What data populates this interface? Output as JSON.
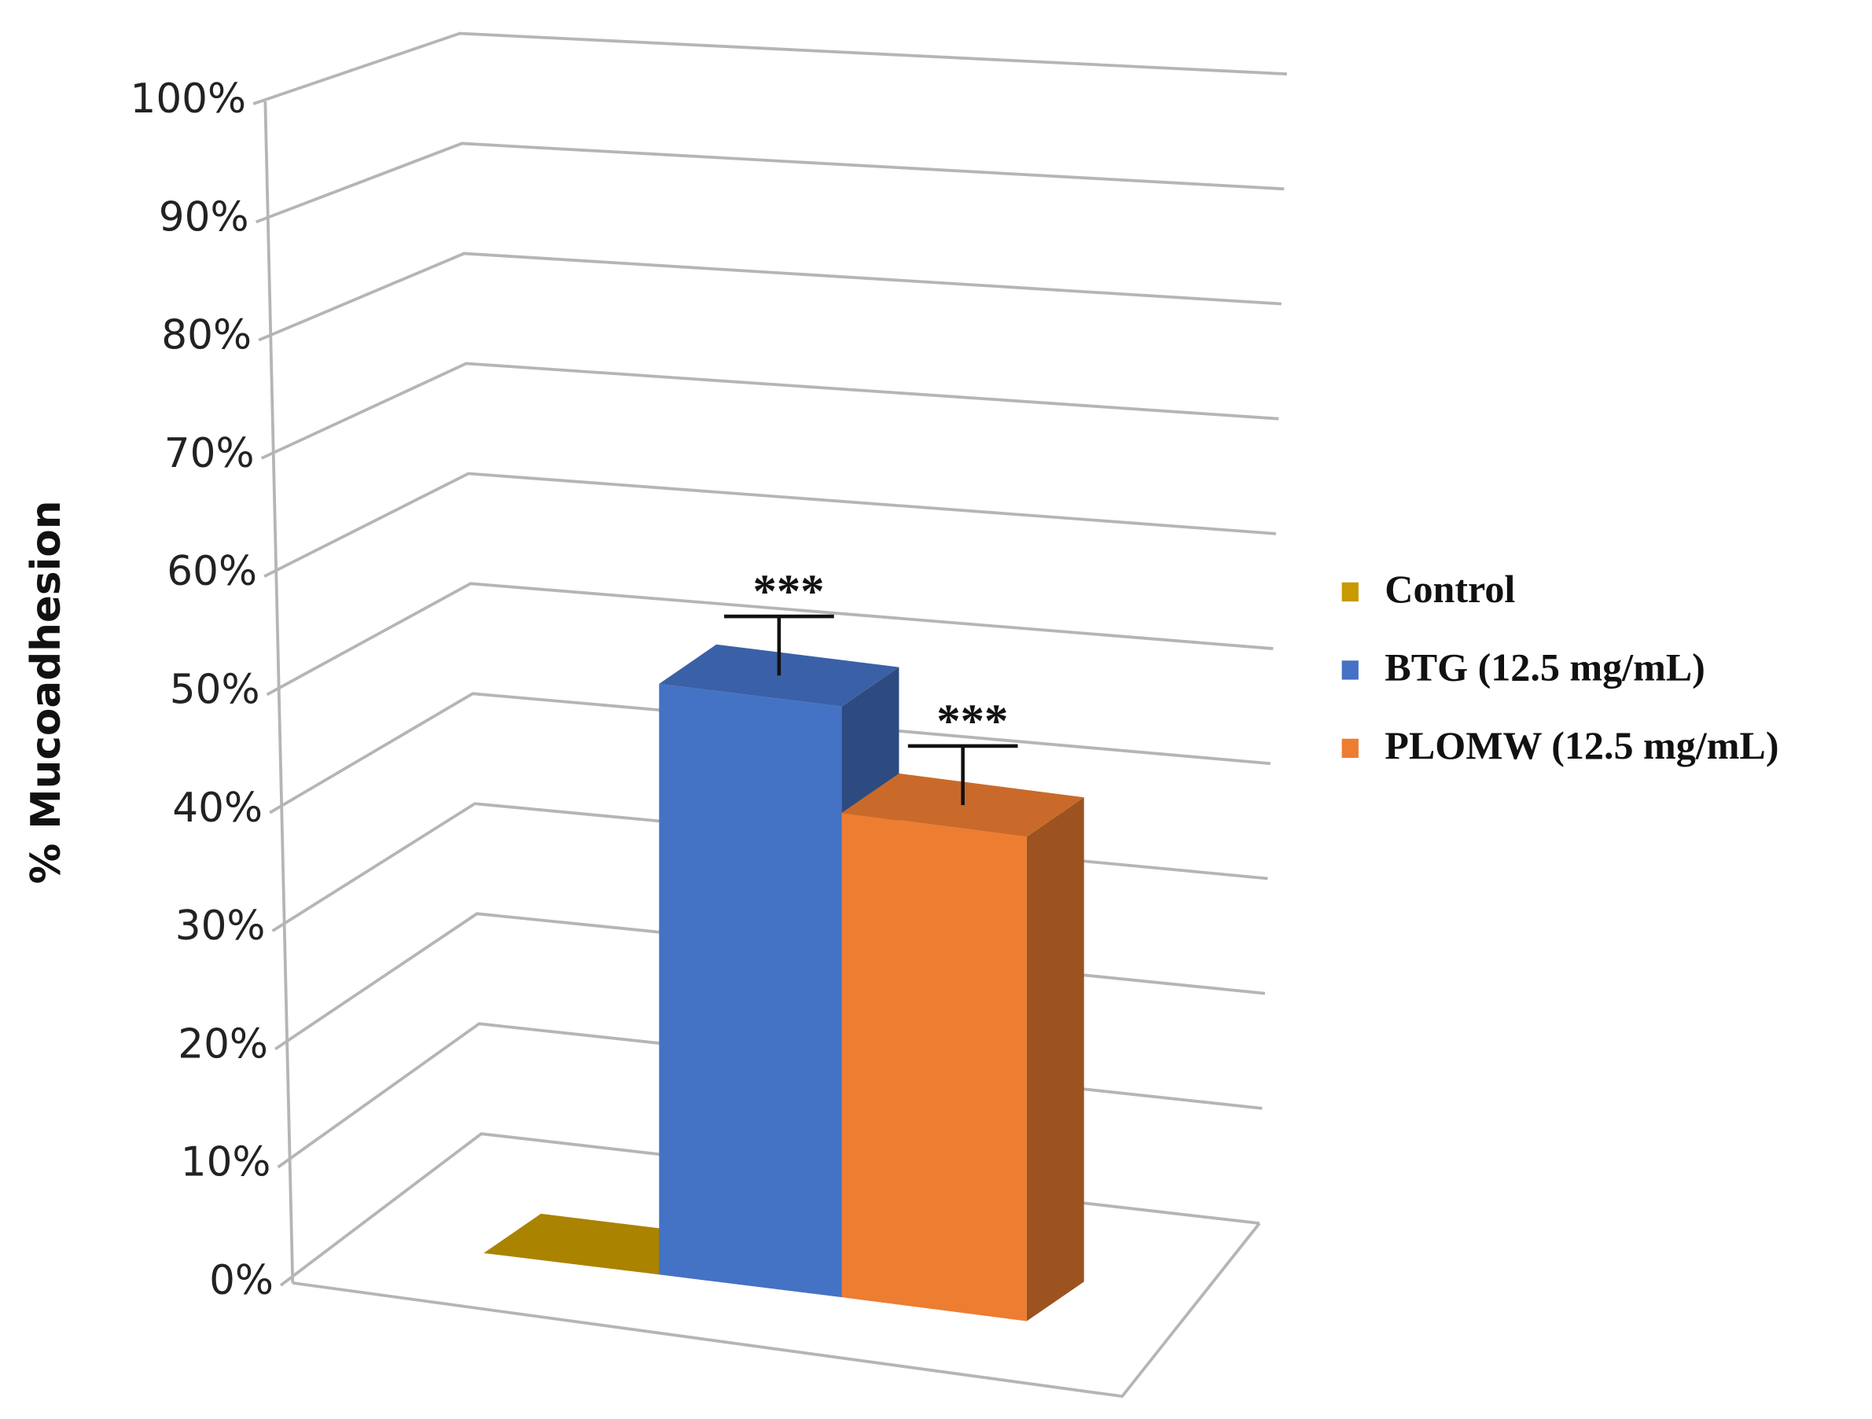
{
  "chart_data": {
    "type": "bar3d",
    "y_label": "% Mucoadhesion",
    "categories": [
      null
    ],
    "series": [
      {
        "name": "Control",
        "color": "#c89a00",
        "values": [
          0
        ]
      },
      {
        "name": "BTG (12.5 mg/mL)",
        "color": "#4472c4",
        "values": [
          50
        ],
        "errors": [
          5
        ],
        "annotations": [
          "***"
        ]
      },
      {
        "name": "PLOMW (12.5 mg/mL)",
        "color": "#ed7d31",
        "values": [
          41
        ],
        "errors": [
          5
        ],
        "annotations": [
          "***"
        ]
      }
    ],
    "ylim": [
      0,
      100
    ],
    "yticks": [
      {
        "value": 0,
        "label": "0%"
      },
      {
        "value": 10,
        "label": "10%"
      },
      {
        "value": 20,
        "label": "20%"
      },
      {
        "value": 30,
        "label": "30%"
      },
      {
        "value": 40,
        "label": "40%"
      },
      {
        "value": 50,
        "label": "50%"
      },
      {
        "value": 60,
        "label": "60%"
      },
      {
        "value": 70,
        "label": "70%"
      },
      {
        "value": 80,
        "label": "80%"
      },
      {
        "value": 90,
        "label": "90%"
      },
      {
        "value": 100,
        "label": "100%"
      }
    ],
    "grid": true,
    "legend": "right"
  }
}
